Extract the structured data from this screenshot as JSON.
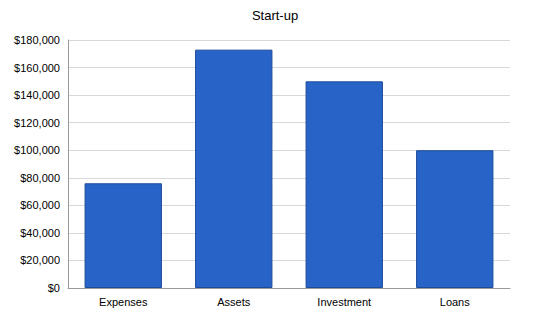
{
  "chart_data": {
    "type": "bar",
    "title": "Start-up",
    "categories": [
      "Expenses",
      "Assets",
      "Investment",
      "Loans"
    ],
    "values": [
      76000,
      173000,
      150000,
      100000
    ],
    "color": "#2864c8",
    "ylim": [
      0,
      180000
    ],
    "yticks": [
      {
        "value": 0,
        "label": "$0"
      },
      {
        "value": 20000,
        "label": "$20,000"
      },
      {
        "value": 40000,
        "label": "$40,000"
      },
      {
        "value": 60000,
        "label": "$60,000"
      },
      {
        "value": 80000,
        "label": "$80,000"
      },
      {
        "value": 100000,
        "label": "$100,000"
      },
      {
        "value": 120000,
        "label": "$120,000"
      },
      {
        "value": 140000,
        "label": "$140,000"
      },
      {
        "value": 160000,
        "label": "$160,000"
      },
      {
        "value": 180000,
        "label": "$180,000"
      }
    ],
    "grid": true
  }
}
